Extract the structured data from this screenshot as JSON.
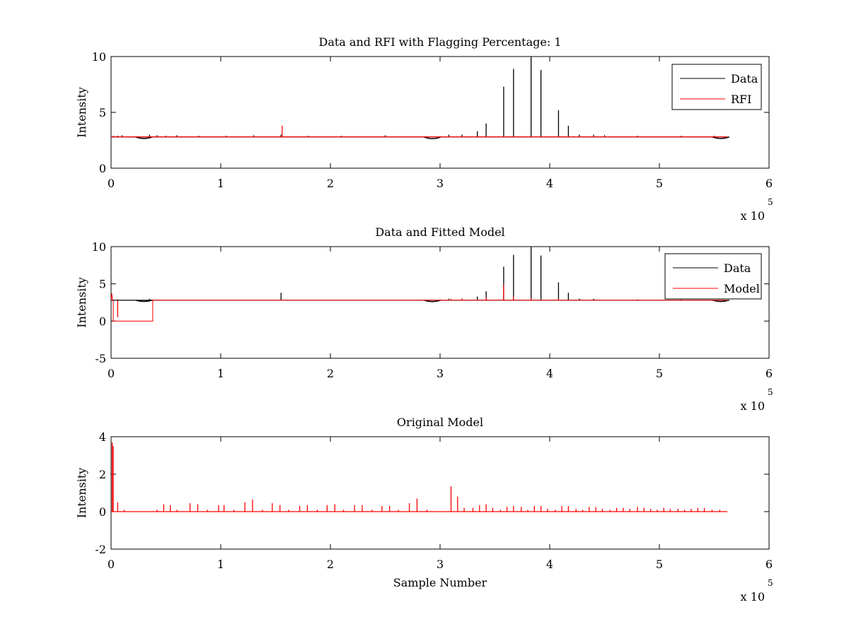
{
  "figure": {
    "background": "#ffffff"
  },
  "colors": {
    "data": "#000000",
    "rfi": "#ff0000",
    "model": "#ff0000",
    "axes": "#000000"
  },
  "chart_data": [
    {
      "type": "line",
      "title": "Data and RFI with Flagging Percentage: 1",
      "xlabel": "",
      "ylabel": "Intensity",
      "xlim": [
        0,
        6
      ],
      "ylim": [
        0,
        10
      ],
      "xticks": [
        0,
        1,
        2,
        3,
        4,
        5,
        6
      ],
      "yticks": [
        0,
        5,
        10
      ],
      "x_multiplier": {
        "base": "x 10",
        "power": "5"
      },
      "legend": {
        "position": "top-right",
        "entries": [
          "Data",
          "RFI"
        ]
      },
      "series": [
        {
          "name": "Data",
          "color": "#000000",
          "baseline": 2.8,
          "x_end": 5.62,
          "spikes": [
            [
              0.02,
              2.9
            ],
            [
              0.06,
              2.9
            ],
            [
              0.1,
              2.95
            ],
            [
              0.35,
              3.0
            ],
            [
              0.42,
              2.95
            ],
            [
              0.5,
              2.9
            ],
            [
              0.6,
              2.95
            ],
            [
              0.8,
              2.9
            ],
            [
              1.05,
              2.9
            ],
            [
              1.3,
              2.95
            ],
            [
              1.55,
              3.0
            ],
            [
              1.8,
              2.9
            ],
            [
              2.1,
              2.9
            ],
            [
              2.5,
              2.95
            ],
            [
              3.08,
              3.0
            ],
            [
              3.2,
              3.0
            ],
            [
              3.34,
              3.3
            ],
            [
              3.42,
              4.0
            ],
            [
              3.58,
              7.3
            ],
            [
              3.67,
              8.9
            ],
            [
              3.83,
              10.0
            ],
            [
              3.92,
              8.8
            ],
            [
              4.08,
              5.2
            ],
            [
              4.17,
              3.8
            ],
            [
              4.27,
              3.0
            ],
            [
              4.4,
              3.0
            ],
            [
              4.5,
              2.95
            ],
            [
              4.8,
              2.9
            ],
            [
              5.2,
              2.9
            ],
            [
              5.5,
              2.9
            ]
          ],
          "dips": [
            [
              0.3,
              2.65
            ],
            [
              2.93,
              2.62
            ],
            [
              5.56,
              2.65
            ]
          ]
        },
        {
          "name": "RFI",
          "color": "#ff0000",
          "baseline": 2.8,
          "x_end": 5.62,
          "spikes": [
            [
              1.56,
              3.8
            ]
          ]
        }
      ]
    },
    {
      "type": "line",
      "title": "Data and Fitted Model",
      "xlabel": "",
      "ylabel": "Intensity",
      "xlim": [
        0,
        6
      ],
      "ylim": [
        -5,
        10
      ],
      "xticks": [
        0,
        1,
        2,
        3,
        4,
        5,
        6
      ],
      "yticks": [
        -5,
        0,
        5,
        10
      ],
      "x_multiplier": {
        "base": "x 10",
        "power": "5"
      },
      "legend": {
        "position": "top-right",
        "entries": [
          "Data",
          "Model"
        ]
      },
      "series": [
        {
          "name": "Data",
          "color": "#000000",
          "baseline": 2.8,
          "x_end": 5.62,
          "spikes": [
            [
              0.02,
              2.9
            ],
            [
              0.06,
              2.9
            ],
            [
              0.35,
              3.0
            ],
            [
              1.55,
              3.8
            ],
            [
              3.08,
              3.0
            ],
            [
              3.2,
              3.0
            ],
            [
              3.34,
              3.3
            ],
            [
              3.42,
              4.0
            ],
            [
              3.58,
              7.3
            ],
            [
              3.67,
              8.9
            ],
            [
              3.83,
              10.0
            ],
            [
              3.92,
              8.8
            ],
            [
              4.08,
              5.2
            ],
            [
              4.17,
              3.8
            ],
            [
              4.27,
              3.0
            ],
            [
              4.4,
              3.0
            ],
            [
              4.8,
              2.9
            ],
            [
              5.2,
              2.9
            ]
          ],
          "dips": [
            [
              0.3,
              2.65
            ],
            [
              2.93,
              2.62
            ],
            [
              5.56,
              2.65
            ]
          ]
        },
        {
          "name": "Model",
          "color": "#ff0000",
          "baseline": 2.8,
          "x_end": 5.62,
          "start_spike": 3.7,
          "zero_segment": [
            0.02,
            0.38
          ],
          "spikes": [
            [
              0.06,
              0.5
            ],
            [
              3.1,
              3.0
            ],
            [
              3.2,
              3.0
            ],
            [
              3.42,
              3.2
            ],
            [
              3.58,
              4.9
            ],
            [
              3.67,
              3.3
            ],
            [
              3.83,
              3.1
            ],
            [
              4.08,
              3.0
            ]
          ]
        }
      ]
    },
    {
      "type": "line",
      "title": "Original Model",
      "xlabel": "Sample Number",
      "ylabel": "Intensity",
      "xlim": [
        0,
        6
      ],
      "ylim": [
        -2,
        4
      ],
      "xticks": [
        0,
        1,
        2,
        3,
        4,
        5,
        6
      ],
      "yticks": [
        -2,
        0,
        2,
        4
      ],
      "x_multiplier": {
        "base": "x 10",
        "power": "5"
      },
      "series": [
        {
          "name": "Model",
          "color": "#ff0000",
          "baseline": 0,
          "x_end": 5.62,
          "spikes": [
            [
              0.01,
              3.7
            ],
            [
              0.02,
              3.5
            ],
            [
              0.06,
              0.5
            ],
            [
              0.12,
              0.1
            ],
            [
              0.42,
              0.1
            ],
            [
              0.48,
              0.4
            ],
            [
              0.54,
              0.35
            ],
            [
              0.6,
              0.1
            ],
            [
              0.72,
              0.45
            ],
            [
              0.79,
              0.4
            ],
            [
              0.88,
              0.1
            ],
            [
              0.98,
              0.35
            ],
            [
              1.03,
              0.35
            ],
            [
              1.12,
              0.1
            ],
            [
              1.22,
              0.5
            ],
            [
              1.29,
              0.65
            ],
            [
              1.38,
              0.1
            ],
            [
              1.47,
              0.45
            ],
            [
              1.54,
              0.35
            ],
            [
              1.62,
              0.1
            ],
            [
              1.72,
              0.3
            ],
            [
              1.79,
              0.35
            ],
            [
              1.88,
              0.1
            ],
            [
              1.97,
              0.35
            ],
            [
              2.04,
              0.4
            ],
            [
              2.12,
              0.1
            ],
            [
              2.22,
              0.35
            ],
            [
              2.29,
              0.35
            ],
            [
              2.38,
              0.1
            ],
            [
              2.47,
              0.3
            ],
            [
              2.54,
              0.3
            ],
            [
              2.62,
              0.1
            ],
            [
              2.72,
              0.45
            ],
            [
              2.79,
              0.7
            ],
            [
              2.88,
              0.1
            ],
            [
              3.1,
              1.35
            ],
            [
              3.16,
              0.8
            ],
            [
              3.22,
              0.2
            ],
            [
              3.3,
              0.2
            ],
            [
              3.36,
              0.35
            ],
            [
              3.42,
              0.4
            ],
            [
              3.48,
              0.2
            ],
            [
              3.55,
              0.1
            ],
            [
              3.61,
              0.25
            ],
            [
              3.67,
              0.3
            ],
            [
              3.74,
              0.25
            ],
            [
              3.8,
              0.1
            ],
            [
              3.86,
              0.3
            ],
            [
              3.92,
              0.3
            ],
            [
              3.98,
              0.15
            ],
            [
              4.05,
              0.1
            ],
            [
              4.11,
              0.3
            ],
            [
              4.17,
              0.3
            ],
            [
              4.24,
              0.15
            ],
            [
              4.3,
              0.1
            ],
            [
              4.36,
              0.25
            ],
            [
              4.42,
              0.25
            ],
            [
              4.48,
              0.15
            ],
            [
              4.55,
              0.1
            ],
            [
              4.61,
              0.2
            ],
            [
              4.67,
              0.2
            ],
            [
              4.73,
              0.15
            ],
            [
              4.8,
              0.25
            ],
            [
              4.86,
              0.2
            ],
            [
              4.92,
              0.15
            ],
            [
              4.98,
              0.1
            ],
            [
              5.04,
              0.2
            ],
            [
              5.1,
              0.15
            ],
            [
              5.17,
              0.15
            ],
            [
              5.23,
              0.1
            ],
            [
              5.29,
              0.15
            ],
            [
              5.35,
              0.2
            ],
            [
              5.41,
              0.2
            ],
            [
              5.48,
              0.1
            ],
            [
              5.55,
              0.1
            ]
          ]
        }
      ]
    }
  ]
}
